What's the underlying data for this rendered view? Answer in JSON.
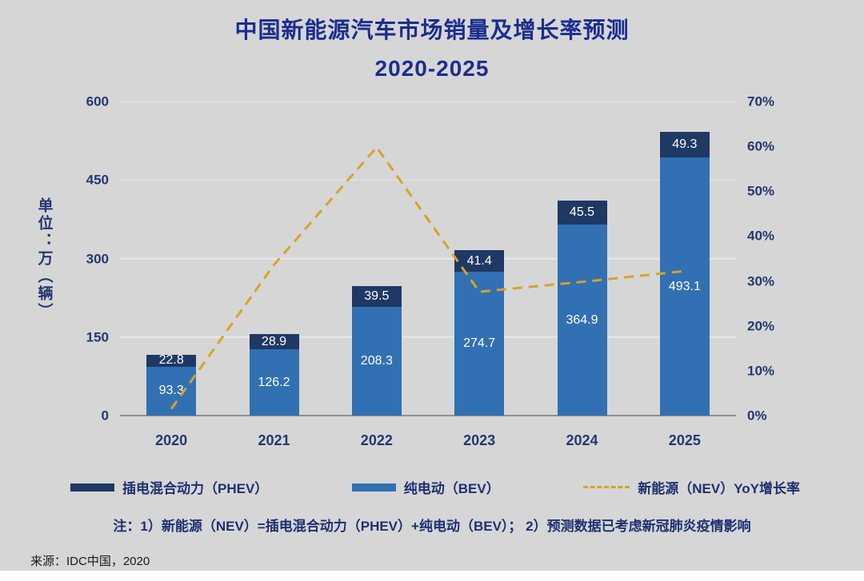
{
  "title": {
    "line1": "中国新能源汽车市场销量及增长率预测",
    "line2": "2020-2025"
  },
  "axes": {
    "left_title": "单位：万（辆）"
  },
  "chart_data": {
    "type": "bar",
    "subtype": "stacked-columns-with-dashed-line",
    "categories": [
      "2020",
      "2021",
      "2022",
      "2023",
      "2024",
      "2025"
    ],
    "series": [
      {
        "name": "纯电动（BEV）",
        "values": [
          93.3,
          126.2,
          208.3,
          274.7,
          364.9,
          493.1
        ],
        "color": "#3170b2"
      },
      {
        "name": "插电混合动力（PHEV）",
        "values": [
          22.8,
          28.9,
          39.5,
          41.4,
          45.5,
          49.3
        ],
        "color": "#1f3864"
      }
    ],
    "line": {
      "name": "新能源（NEV）YoY增长率",
      "values_pct": [
        1.5,
        33.6,
        59.8,
        27.6,
        29.8,
        32.2
      ],
      "color": "#d5a427",
      "style": "dashed"
    },
    "left_axis": {
      "min": 0,
      "max": 600,
      "ticks": [
        0,
        150,
        300,
        450,
        600
      ]
    },
    "right_axis": {
      "min": 0,
      "max": 70,
      "ticks": [
        0,
        10,
        20,
        30,
        40,
        50,
        60,
        70
      ],
      "format": "percent"
    },
    "grid": true,
    "legend_position": "bottom"
  },
  "note": "注：1）新能源（NEV）=插电混合动力（PHEV）+纯电动（BEV）； 2）预测数据已考虑新冠肺炎疫情影响",
  "source": "来源：IDC中国，2020",
  "colors": {
    "background": "#d6d6d6",
    "title_text": "#1b2d8e",
    "axis_text": "#23386f",
    "bev_bar": "#3170b2",
    "phev_bar": "#1f3864",
    "growth_line": "#d5a427",
    "gridline": "#e8e8e8",
    "value_label_text": "#ffffff"
  }
}
